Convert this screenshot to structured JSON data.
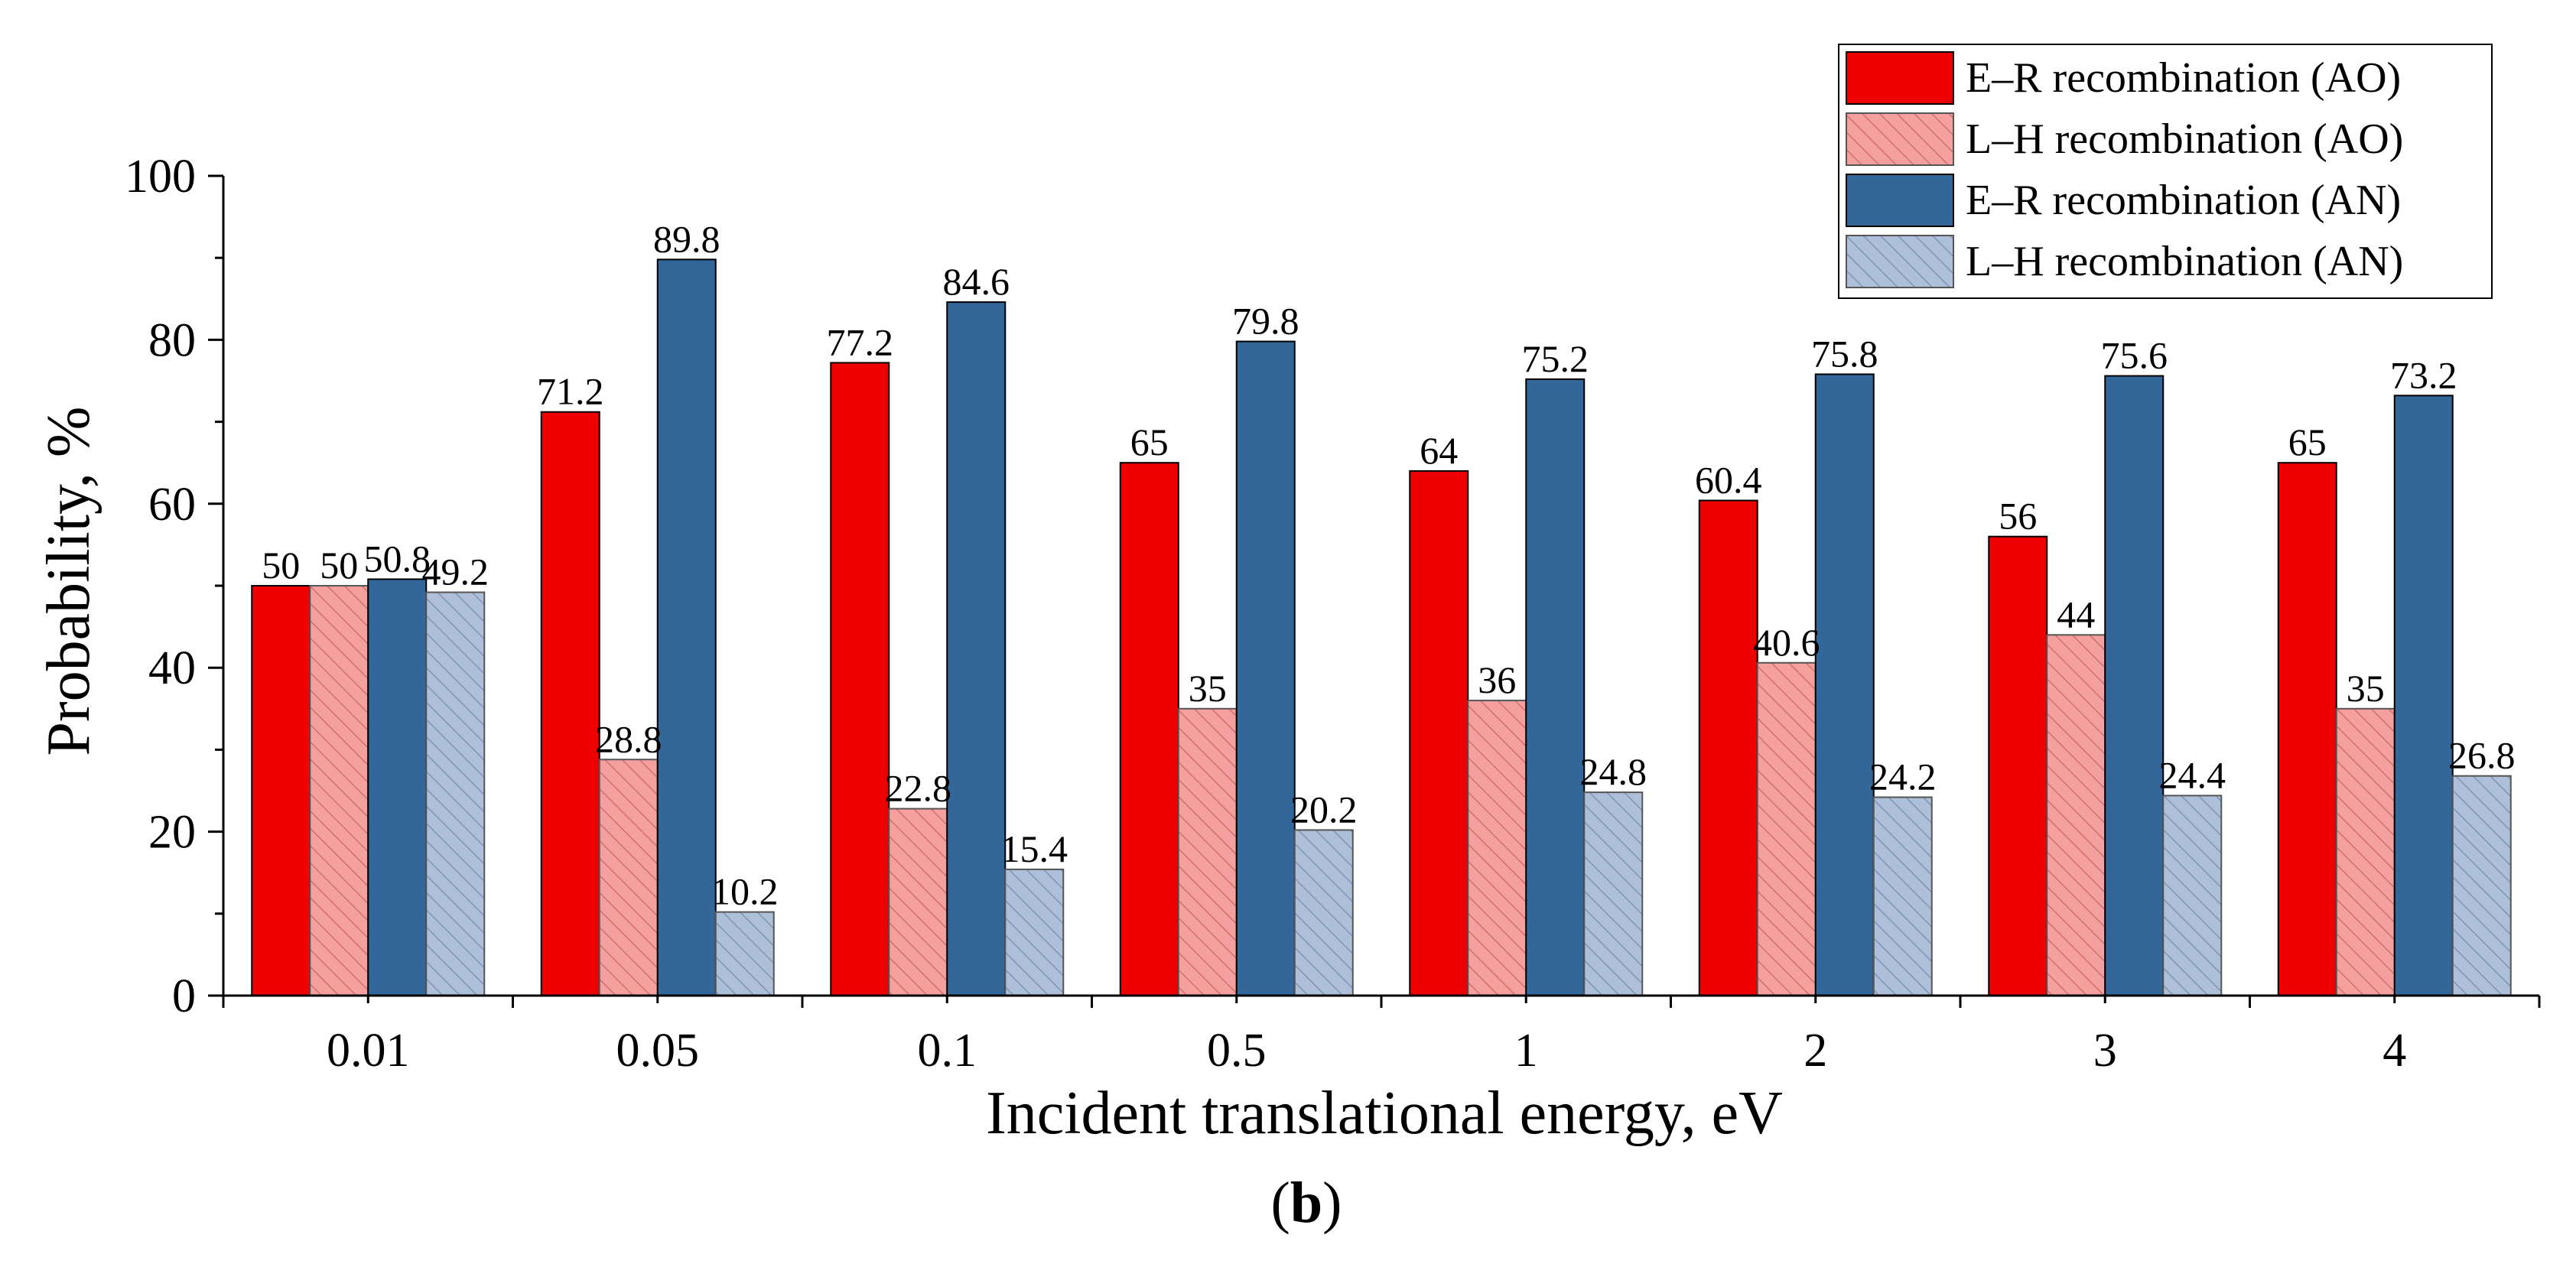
{
  "chart_data": {
    "type": "bar",
    "title": "",
    "xlabel": "Incident translational energy, eV",
    "ylabel": "Probability, %",
    "ylim": [
      0,
      100
    ],
    "yticks": [
      "0",
      "20",
      "40",
      "60",
      "80",
      "100"
    ],
    "categories": [
      "0.01",
      "0.05",
      "0.1",
      "0.5",
      "1",
      "2",
      "3",
      "4"
    ],
    "grid": false,
    "legend_position": "top-right",
    "series": [
      {
        "name": "E–R recombination (AO)",
        "color": "#EE0000",
        "hatched": false,
        "values": [
          50,
          71.2,
          77.2,
          65,
          64,
          60.4,
          56,
          65
        ],
        "labels": [
          "50",
          "71.2",
          "77.2",
          "65",
          "64",
          "60.4",
          "56",
          "65"
        ]
      },
      {
        "name": "L–H recombination (AO)",
        "color": "#F4A09F",
        "hatched": true,
        "values": [
          50,
          28.8,
          22.8,
          35,
          36,
          40.6,
          44,
          35
        ],
        "labels": [
          "50",
          "28.8",
          "22.8",
          "35",
          "36",
          "40.6",
          "44",
          "35"
        ]
      },
      {
        "name": "E–R recombination (AN)",
        "color": "#336699",
        "hatched": false,
        "values": [
          50.8,
          89.8,
          84.6,
          79.8,
          75.2,
          75.8,
          75.6,
          73.2
        ],
        "labels": [
          "50.8",
          "89.8",
          "84.6",
          "79.8",
          "75.2",
          "75.8",
          "75.6",
          "73.2"
        ]
      },
      {
        "name": "L–H recombination (AN)",
        "color": "#ADBFD9",
        "hatched": true,
        "values": [
          49.2,
          10.2,
          15.4,
          20.2,
          24.8,
          24.2,
          24.4,
          26.8
        ],
        "labels": [
          "49.2",
          "10.2",
          "15.4",
          "20.2",
          "24.8",
          "24.2",
          "24.4",
          "26.8"
        ]
      }
    ]
  },
  "caption": {
    "open": "(",
    "letter": "b",
    "close": ")"
  }
}
